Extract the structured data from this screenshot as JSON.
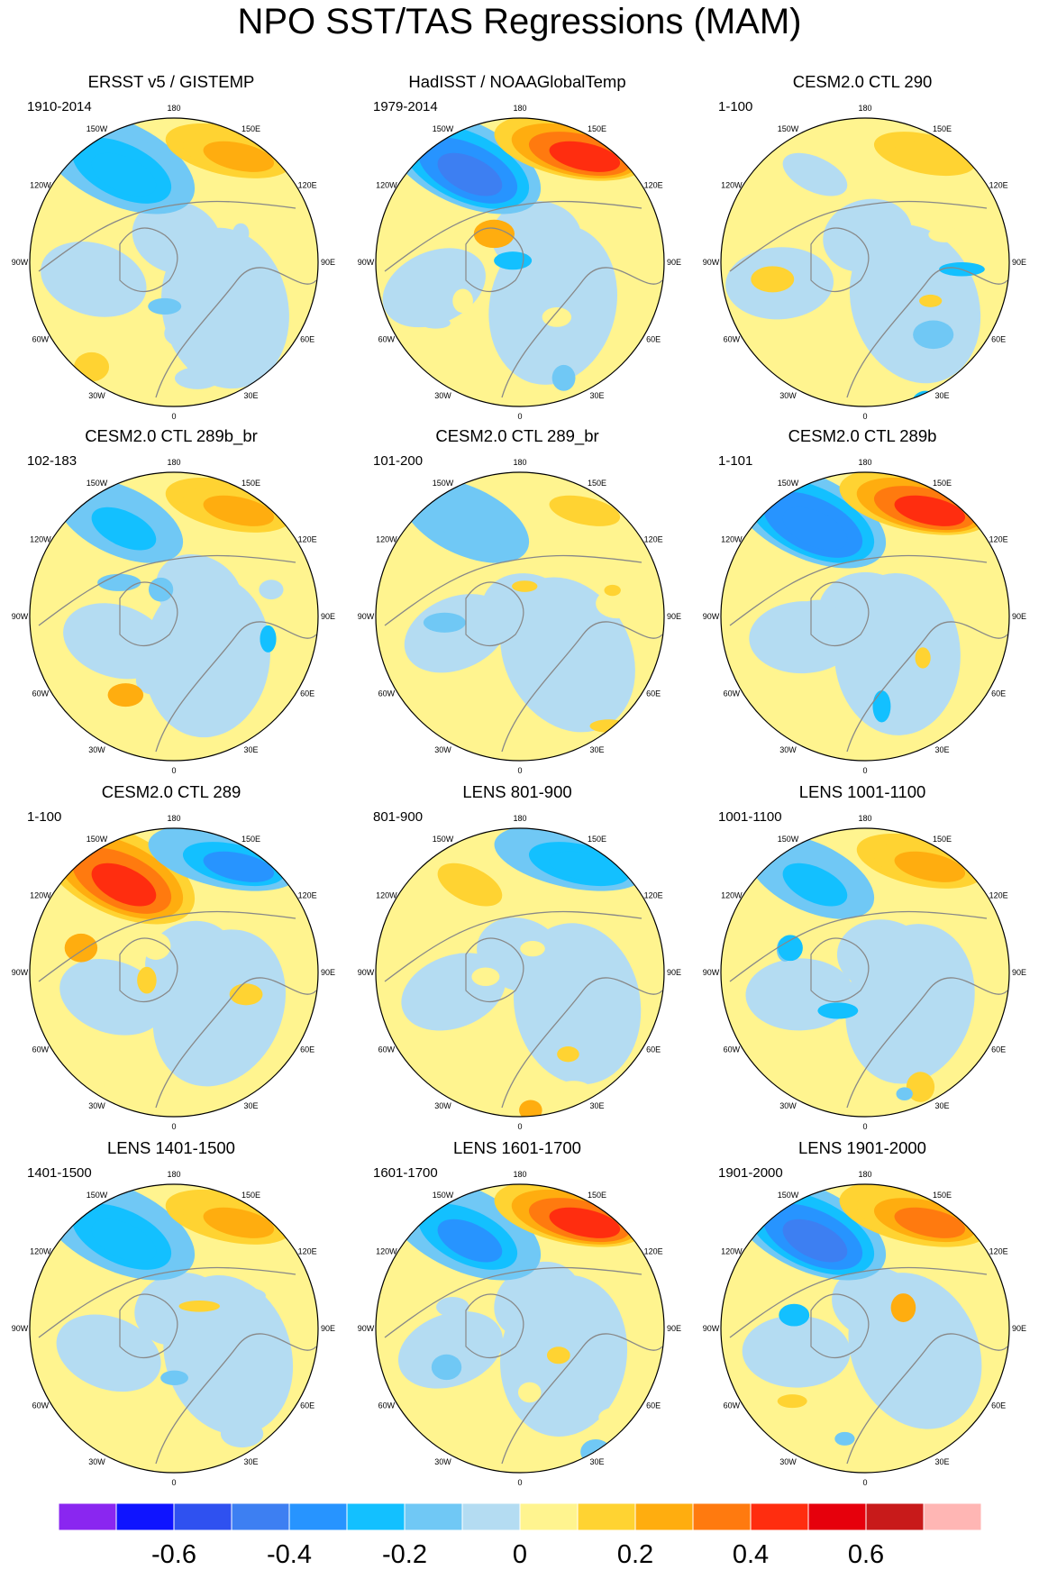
{
  "title": "NPO SST/TAS Regressions (MAM)",
  "chart_data": {
    "type": "heatmap",
    "projection": "north polar stereographic",
    "variable": "SST/TAS regression on NPO index",
    "season": "MAM",
    "longitude_labels": [
      "180",
      "150E",
      "120E",
      "90E",
      "60E",
      "30E",
      "0",
      "30W",
      "60W",
      "90W",
      "120W",
      "150W"
    ],
    "colorbar": {
      "levels": [
        -0.7,
        -0.6,
        -0.5,
        -0.4,
        -0.3,
        -0.2,
        -0.1,
        0,
        0.1,
        0.2,
        0.3,
        0.4,
        0.5,
        0.6,
        0.7
      ],
      "colors": [
        "#8a26f0",
        "#0f14ff",
        "#2f51f0",
        "#3d7ff2",
        "#2794ff",
        "#13c0ff",
        "#70c8f5",
        "#b4dcf2",
        "#fff48f",
        "#ffd332",
        "#ffad0f",
        "#ff7a0f",
        "#ff2d0f",
        "#e6000c",
        "#c81a1a",
        "#ffb6b4"
      ],
      "tick_labels": [
        "-0.6",
        "-0.4",
        "-0.2",
        "0",
        "0.2",
        "0.4",
        "0.6"
      ],
      "tick_values": [
        -0.6,
        -0.4,
        -0.2,
        0,
        0.2,
        0.4,
        0.6
      ]
    },
    "panels": [
      {
        "title": "ERSST v5 / GISTEMP",
        "years": "1910-2014",
        "npo_dipole": {
          "warm_north_pacific": 0.25,
          "cold_northeast_pacific": -0.3
        }
      },
      {
        "title": "HadISST / NOAAGlobalTemp",
        "years": "1979-2014",
        "npo_dipole": {
          "warm_north_pacific": 0.45,
          "cold_northeast_pacific": -0.45
        }
      },
      {
        "title": "CESM2.0 CTL 290",
        "years": "1-100",
        "npo_dipole": {
          "warm_north_pacific": 0.15,
          "cold_northeast_pacific": -0.1
        }
      },
      {
        "title": "CESM2.0 CTL 289b_br",
        "years": "102-183",
        "npo_dipole": {
          "warm_north_pacific": 0.25,
          "cold_northeast_pacific": -0.25
        }
      },
      {
        "title": "CESM2.0 CTL 289_br",
        "years": "101-200",
        "npo_dipole": {
          "warm_north_pacific": 0.1,
          "cold_northeast_pacific": -0.2
        }
      },
      {
        "title": "CESM2.0 CTL 289b",
        "years": "1-101",
        "npo_dipole": {
          "warm_north_pacific": 0.4,
          "cold_northeast_pacific": -0.4
        }
      },
      {
        "title": "CESM2.0 CTL 289",
        "years": "1-100",
        "npo_dipole": {
          "warm_north_pacific": -0.35,
          "cold_northeast_pacific": 0.4
        }
      },
      {
        "title": "LENS 801-900",
        "years": "801-900",
        "npo_dipole": {
          "warm_north_pacific": -0.3,
          "cold_northeast_pacific": 0.1
        }
      },
      {
        "title": "LENS 1001-1100",
        "years": "1001-1100",
        "npo_dipole": {
          "warm_north_pacific": 0.25,
          "cold_northeast_pacific": -0.25
        }
      },
      {
        "title": "LENS 1401-1500",
        "years": "1401-1500",
        "npo_dipole": {
          "warm_north_pacific": 0.2,
          "cold_northeast_pacific": -0.3
        }
      },
      {
        "title": "LENS 1601-1700",
        "years": "1601-1700",
        "npo_dipole": {
          "warm_north_pacific": 0.4,
          "cold_northeast_pacific": -0.35
        }
      },
      {
        "title": "LENS 1901-2000",
        "years": "1901-2000",
        "npo_dipole": {
          "warm_north_pacific": 0.3,
          "cold_northeast_pacific": -0.45
        }
      }
    ]
  }
}
